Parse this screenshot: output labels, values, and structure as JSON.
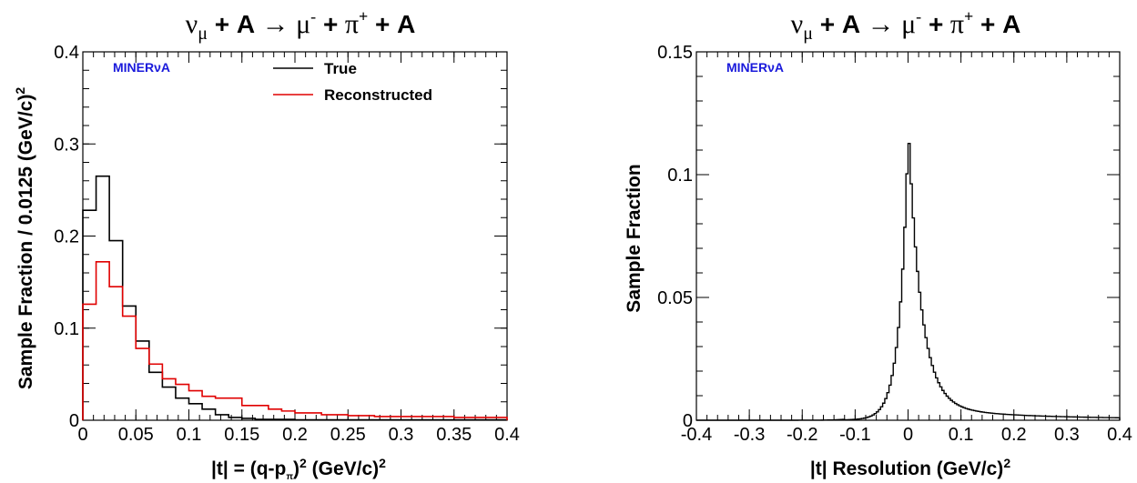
{
  "chart_data": [
    {
      "type": "histogram",
      "title": "ν_μ + A → μ⁻ + π⁺ + A",
      "title_parts": {
        "nu": "ν",
        "mu_sub": "μ",
        "plus": "+",
        "A": "A",
        "arrow": "→",
        "mu": "μ",
        "minus_sup": "-",
        "pi": "π",
        "plus_sup": "+"
      },
      "brand": "MINERνA",
      "xlabel": "|t| = (q-p_π)² (GeV/c)²",
      "xlabel_parts": {
        "pre": "|t| = (q-p",
        "sub": "π",
        "mid": ")",
        "sup1": "2",
        "unit": " (GeV/c)",
        "sup2": "2"
      },
      "ylabel": "Sample Fraction / 0.0125 (GeV/c)²",
      "ylabel_parts": {
        "text": "Sample Fraction / 0.0125 (GeV/c)",
        "sup": "2"
      },
      "xlim": [
        0,
        0.4
      ],
      "ylim": [
        0,
        0.4
      ],
      "xticks": [
        "0",
        "0.05",
        "0.1",
        "0.15",
        "0.2",
        "0.25",
        "0.3",
        "0.35",
        "0.4"
      ],
      "yticks": [
        "0",
        "0.1",
        "0.2",
        "0.3",
        "0.4"
      ],
      "bin_width": 0.0125,
      "legend_position": "top-right",
      "grid": false,
      "series": [
        {
          "name": "True",
          "color": "#000000",
          "values": [
            0.228,
            0.265,
            0.195,
            0.124,
            0.086,
            0.052,
            0.036,
            0.024,
            0.018,
            0.012,
            0.006,
            0.003,
            0.002,
            0.001,
            0.001,
            0.001,
            0.0005,
            0.0005,
            0.0005,
            0.0005,
            0.0005,
            0.0005,
            0.0005,
            0.0005,
            0.0005,
            0.0005,
            0.0005,
            0.0005,
            0.0005,
            0.0005,
            0.0005,
            0.0005
          ]
        },
        {
          "name": "Reconstructed",
          "color": "#e00000",
          "values": [
            0.126,
            0.172,
            0.145,
            0.113,
            0.078,
            0.061,
            0.045,
            0.039,
            0.032,
            0.026,
            0.024,
            0.024,
            0.016,
            0.016,
            0.012,
            0.01,
            0.008,
            0.008,
            0.006,
            0.006,
            0.005,
            0.005,
            0.004,
            0.004,
            0.004,
            0.004,
            0.004,
            0.004,
            0.003,
            0.003,
            0.003,
            0.003
          ]
        }
      ]
    },
    {
      "type": "histogram",
      "title": "ν_μ + A → μ⁻ + π⁺ + A",
      "brand": "MINERνA",
      "xlabel": "|t| Resolution (GeV/c)²",
      "xlabel_parts": {
        "text": "|t| Resolution (GeV/c)",
        "sup": "2"
      },
      "ylabel": "Sample Fraction",
      "xlim": [
        -0.4,
        0.4
      ],
      "ylim": [
        0,
        0.15
      ],
      "xticks": [
        "-0.4",
        "-0.3",
        "-0.2",
        "-0.1",
        "0",
        "0.1",
        "0.2",
        "0.3",
        "0.4"
      ],
      "yticks": [
        "0",
        "0.05",
        "0.1",
        "0.15"
      ],
      "grid": false,
      "series": [
        {
          "color": "#000000",
          "peak_center": 0.0,
          "peak_value": 0.113,
          "left_width": 0.022,
          "right_width": 0.038,
          "right_tail": 0.003,
          "left_tail": 0.0004
        }
      ]
    }
  ]
}
